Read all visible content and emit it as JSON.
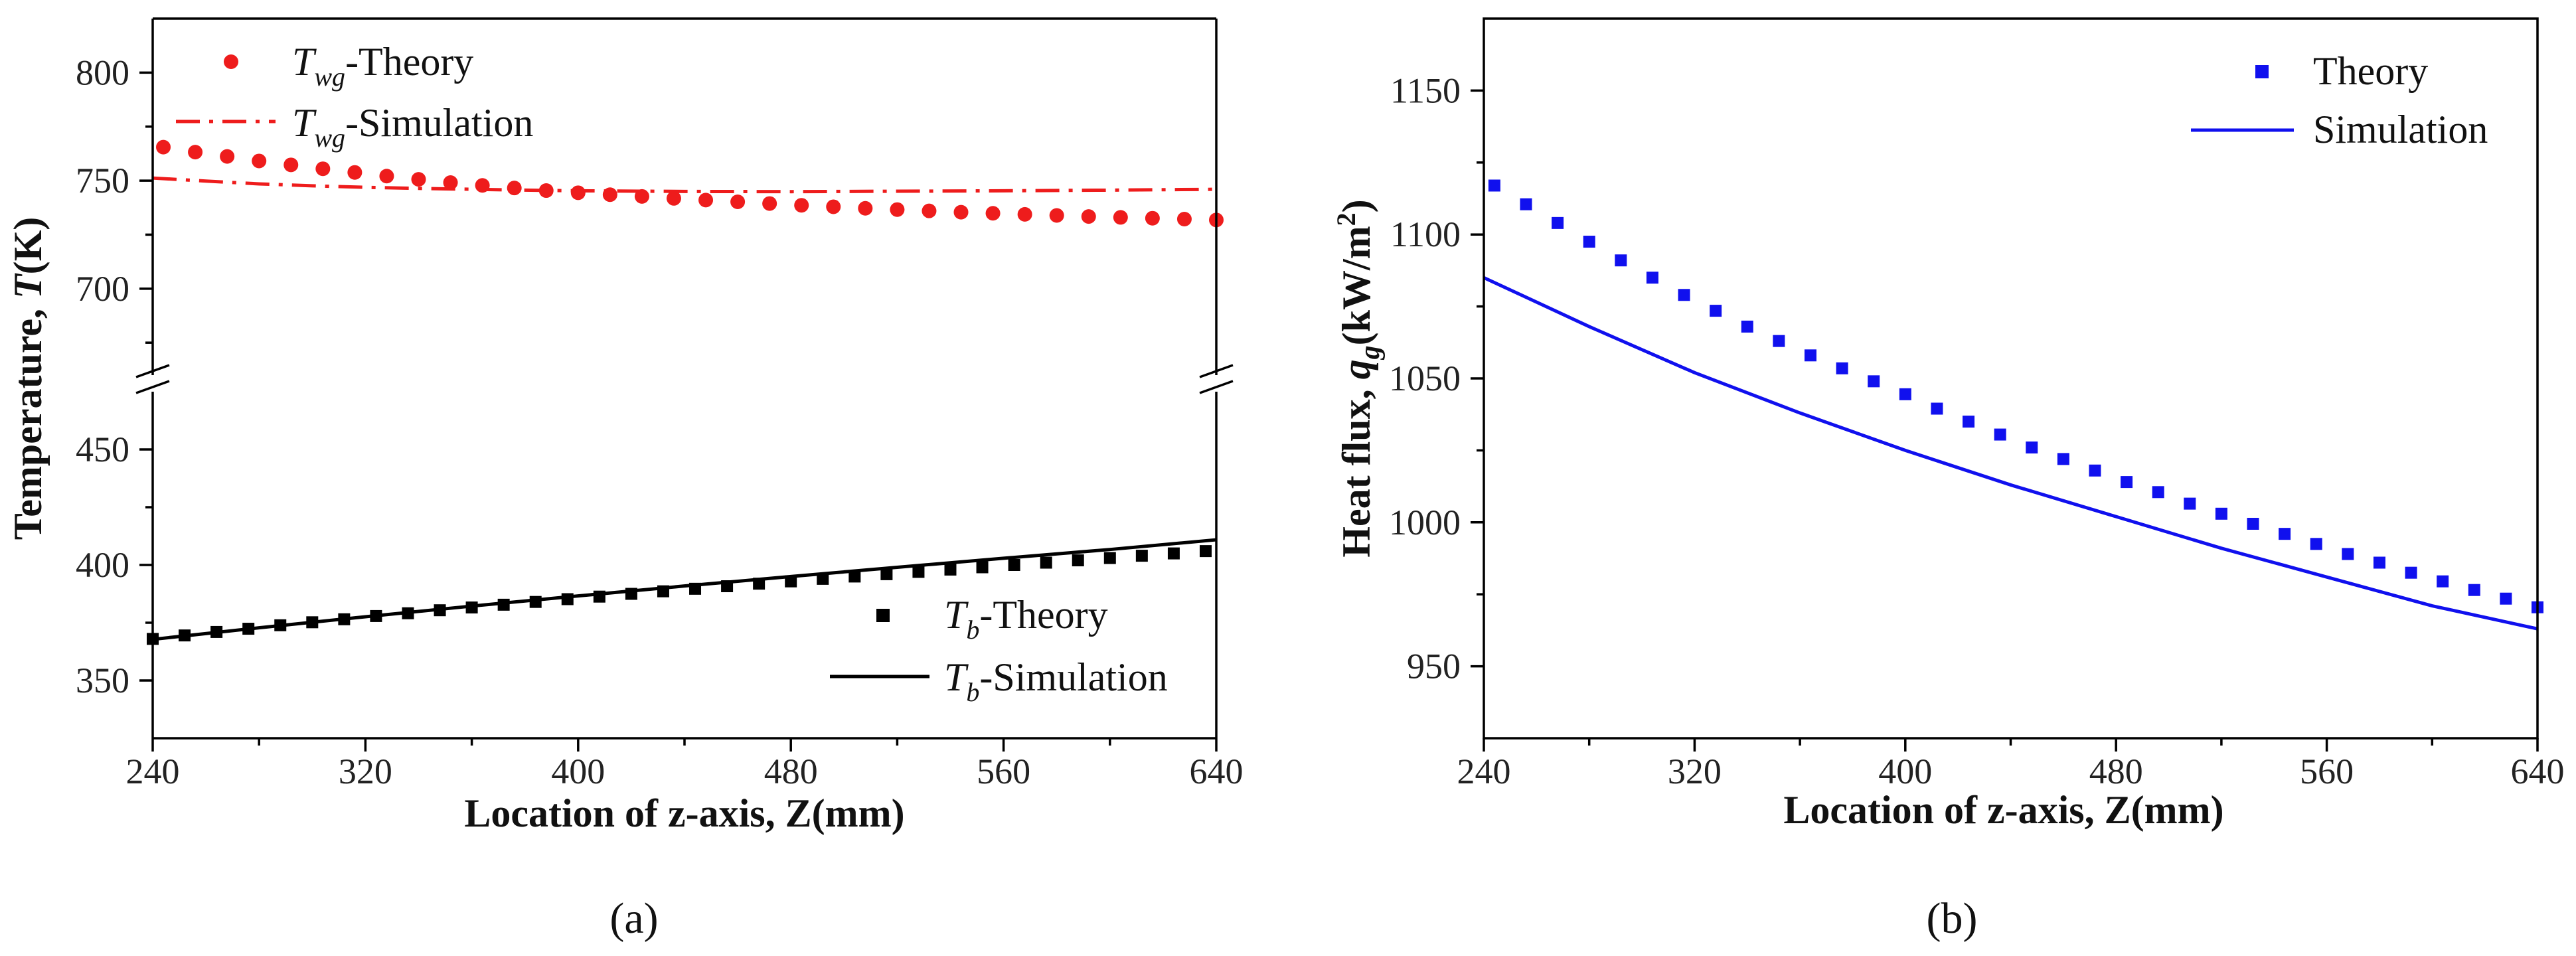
{
  "chart_data": [
    {
      "type": "scatter",
      "panel_label": "(a)",
      "xlabel": "Location of z-axis, Z(mm)",
      "ylabel_prefix": "Temperature, ",
      "ylabel_var": "T",
      "ylabel_suffix": "(K)",
      "xlim": [
        240,
        640
      ],
      "xticks": [
        "240",
        "320",
        "400",
        "480",
        "560",
        "640"
      ],
      "y_axis_break": true,
      "upper_ylim": [
        660,
        825
      ],
      "upper_yticks": [
        "700",
        "750",
        "800"
      ],
      "lower_ylim": [
        325,
        475
      ],
      "lower_yticks": [
        "350",
        "400",
        "450"
      ],
      "legend_upper_placement": "top-left",
      "legend_lower_placement": "bottom-right",
      "series": [
        {
          "name": "Twg-Theory",
          "legend_main": "T",
          "legend_sub": "wg",
          "legend_rest": "-Theory",
          "style": "circle-markers",
          "color": "#ee1c1c",
          "x": [
            244,
            256,
            268,
            280,
            292,
            304,
            316,
            328,
            340,
            352,
            364,
            376,
            388,
            400,
            412,
            424,
            436,
            448,
            460,
            472,
            484,
            496,
            508,
            520,
            532,
            544,
            556,
            568,
            580,
            592,
            604,
            616,
            628,
            640
          ],
          "y": [
            765.5,
            763.2,
            761.2,
            759.1,
            757.3,
            755.5,
            753.8,
            752.1,
            750.6,
            749.1,
            747.8,
            746.6,
            745.4,
            744.4,
            743.5,
            742.7,
            741.8,
            741.0,
            740.2,
            739.4,
            738.6,
            737.9,
            737.2,
            736.6,
            736.0,
            735.4,
            734.9,
            734.4,
            733.9,
            733.4,
            733.0,
            732.6,
            732.2,
            731.8
          ]
        },
        {
          "name": "Twg-Simulation",
          "legend_main": "T",
          "legend_sub": "wg",
          "legend_rest": "-Simulation",
          "style": "dash-dot-line",
          "color": "#ee1c1c",
          "x": [
            240,
            260,
            280,
            300,
            320,
            340,
            360,
            380,
            400,
            440,
            480,
            520,
            560,
            600,
            640
          ],
          "y": [
            751.2,
            749.8,
            748.5,
            747.6,
            746.9,
            746.4,
            746.0,
            745.6,
            745.3,
            745.0,
            744.9,
            745.1,
            745.3,
            745.6,
            746.0
          ]
        },
        {
          "name": "Tb-Theory",
          "legend_main": "T",
          "legend_sub": "b",
          "legend_rest": "-Theory",
          "style": "square-markers",
          "color": "#000000",
          "x": [
            240,
            252,
            264,
            276,
            288,
            300,
            312,
            324,
            336,
            348,
            360,
            372,
            384,
            396,
            408,
            420,
            432,
            444,
            456,
            468,
            480,
            492,
            504,
            516,
            528,
            540,
            552,
            564,
            576,
            588,
            600,
            612,
            624,
            636
          ],
          "y": [
            368.0,
            369.5,
            371.0,
            372.4,
            373.9,
            375.2,
            376.5,
            377.9,
            379.1,
            380.4,
            381.6,
            382.8,
            384.0,
            385.2,
            386.3,
            387.5,
            388.6,
            389.7,
            390.8,
            391.9,
            392.9,
            394.0,
            395.0,
            396.0,
            397.0,
            398.0,
            399.0,
            400.0,
            401.0,
            402.0,
            403.0,
            404.0,
            405.0,
            406.0
          ]
        },
        {
          "name": "Tb-Simulation",
          "legend_main": "T",
          "legend_sub": "b",
          "legend_rest": "-Simulation",
          "style": "solid-line",
          "color": "#000000",
          "x": [
            240,
            280,
            320,
            360,
            400,
            440,
            480,
            520,
            560,
            600,
            640
          ],
          "y": [
            367.8,
            372.8,
            377.6,
            382.2,
            386.6,
            390.9,
            395.0,
            399.0,
            402.9,
            406.7,
            410.9
          ]
        }
      ]
    },
    {
      "type": "scatter",
      "panel_label": "(b)",
      "xlabel": "Location of z-axis, Z(mm)",
      "ylabel_prefix": "Heat flux, ",
      "ylabel_var": "q",
      "ylabel_sub": "g",
      "ylabel_mid": "(kW/m",
      "ylabel_sup": "2",
      "ylabel_end": ")",
      "xlim": [
        240,
        640
      ],
      "xticks": [
        "240",
        "320",
        "400",
        "480",
        "560",
        "640"
      ],
      "ylim": [
        925,
        1175
      ],
      "yticks": [
        "950",
        "1000",
        "1050",
        "1100",
        "1150"
      ],
      "legend_placement": "top-right",
      "series": [
        {
          "name": "Theory",
          "style": "square-markers",
          "color": "#1010ee",
          "x": [
            244,
            256,
            268,
            280,
            292,
            304,
            316,
            328,
            340,
            352,
            364,
            376,
            388,
            400,
            412,
            424,
            436,
            448,
            460,
            472,
            484,
            496,
            508,
            520,
            532,
            544,
            556,
            568,
            580,
            592,
            604,
            616,
            628,
            640
          ],
          "y": [
            1117,
            1110.5,
            1104,
            1097.5,
            1091,
            1085,
            1079,
            1073.5,
            1068,
            1063,
            1058,
            1053.5,
            1049,
            1044.5,
            1039.5,
            1035,
            1030.5,
            1026,
            1022,
            1018,
            1014,
            1010.5,
            1006.5,
            1003,
            999.5,
            996,
            992.5,
            989,
            986,
            982.5,
            979.5,
            976.5,
            973.5,
            970.5
          ]
        },
        {
          "name": "Simulation",
          "style": "solid-line",
          "color": "#1010ee",
          "x": [
            240,
            280,
            320,
            360,
            400,
            440,
            480,
            520,
            560,
            600,
            640
          ],
          "y": [
            1085,
            1068,
            1052,
            1038,
            1025,
            1013,
            1002,
            991,
            981,
            971,
            963
          ]
        }
      ]
    }
  ]
}
